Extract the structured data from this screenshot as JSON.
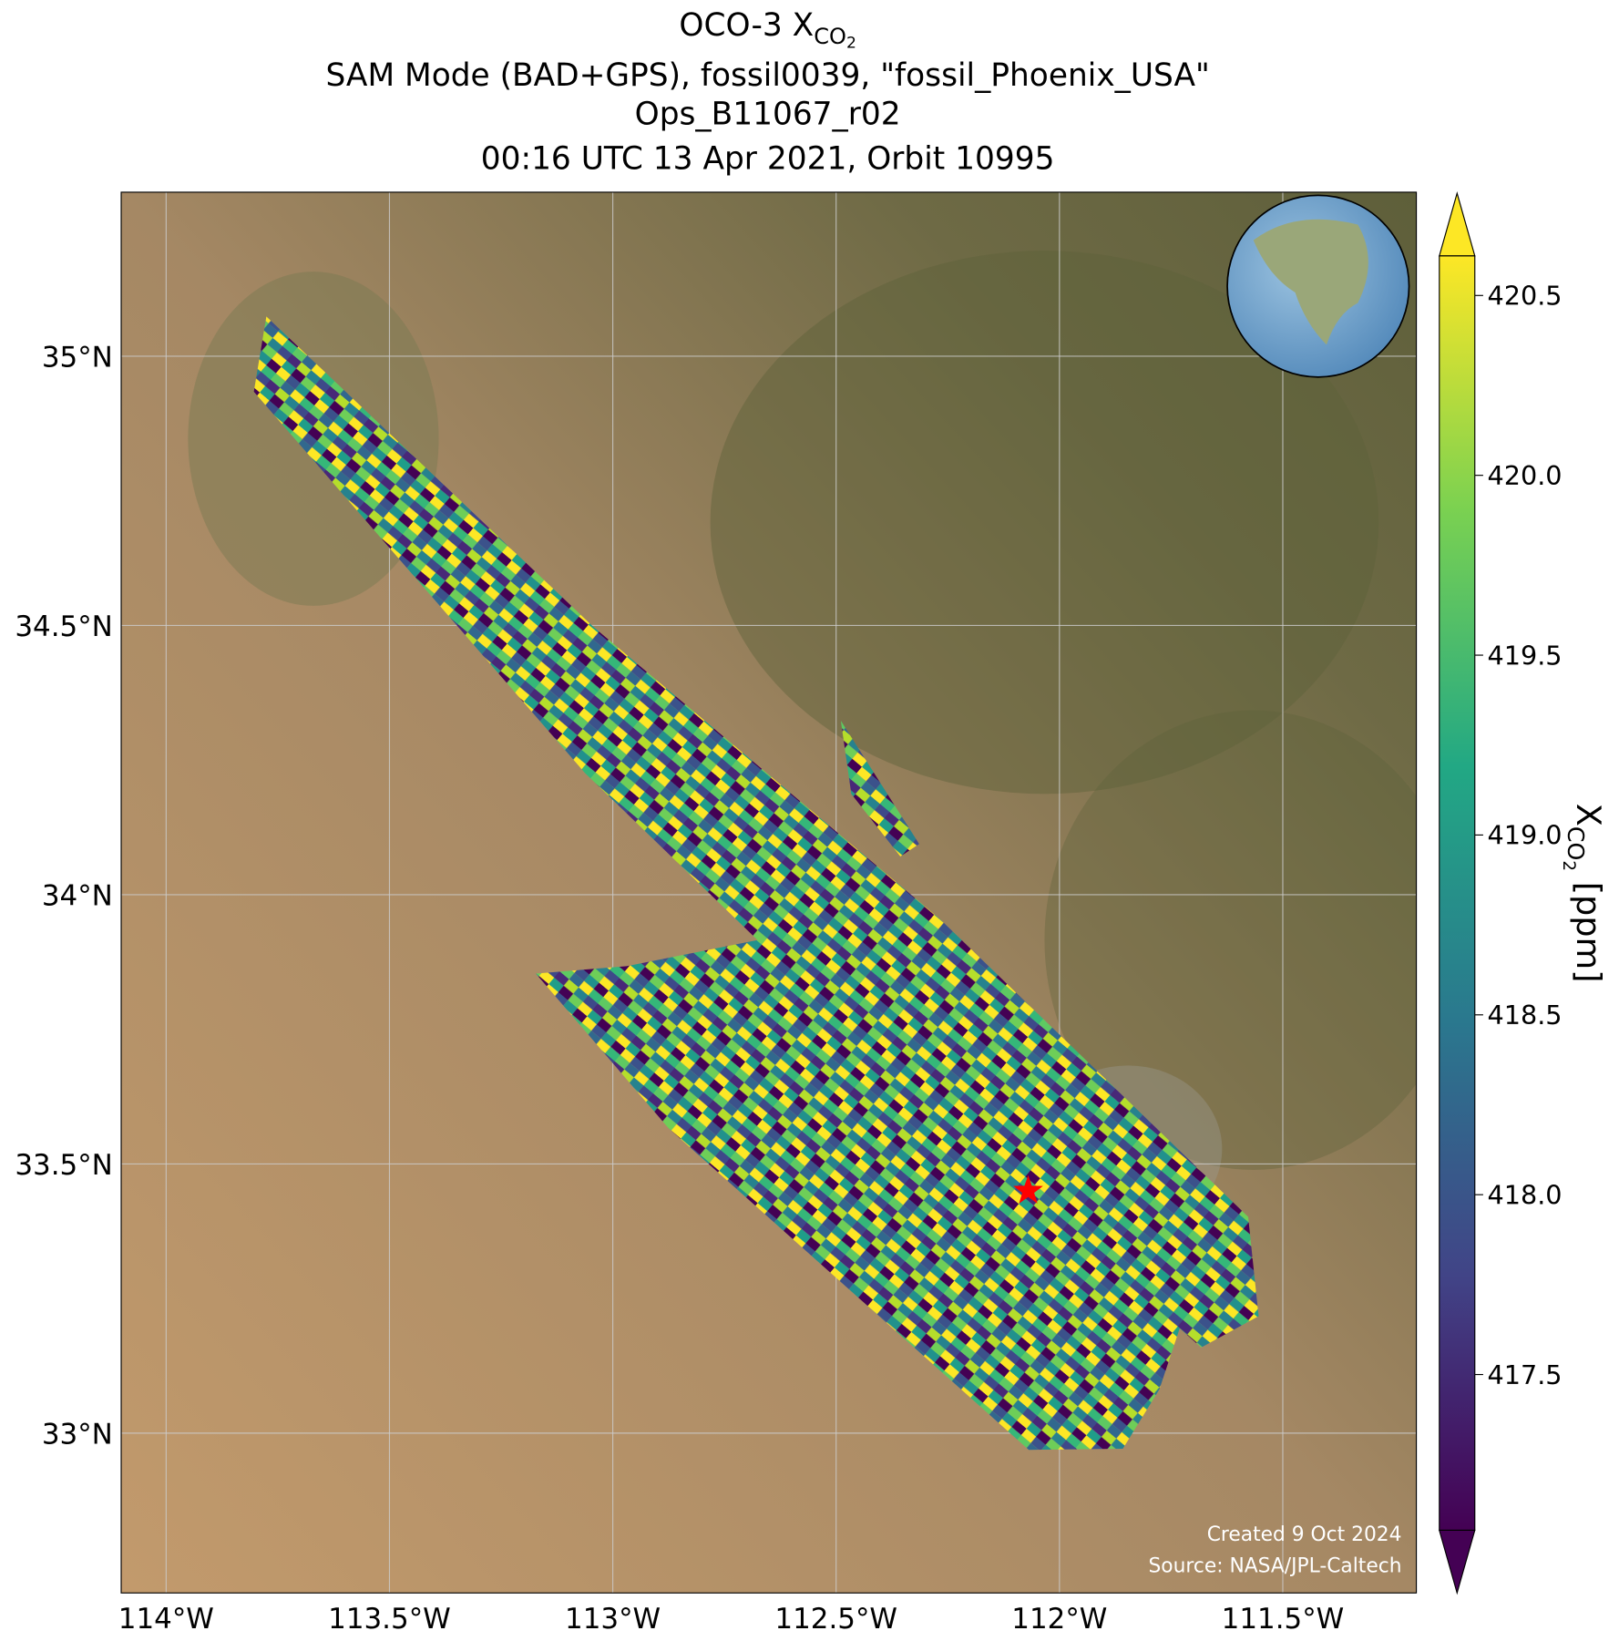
{
  "chart_data": {
    "type": "map",
    "title": {
      "line1": {
        "text": "OCO-3 X",
        "subscript": "CO",
        "subsubscript": "2"
      },
      "line2": "SAM Mode (BAD+GPS), fossil0039, \"fossil_Phoenix_USA\"",
      "line3": "Ops_B11067_r02",
      "line4": "00:16 UTC 13 Apr 2021, Orbit 10995"
    },
    "xlim": [
      -114.1006,
      -111.201
    ],
    "ylim": [
      32.7032,
      35.3046
    ],
    "xticks": [
      {
        "value": -114,
        "label": "114°W"
      },
      {
        "value": -113.5,
        "label": "113.5°W"
      },
      {
        "value": -113,
        "label": "113°W"
      },
      {
        "value": -112.5,
        "label": "112.5°W"
      },
      {
        "value": -112,
        "label": "112°W"
      },
      {
        "value": -111.5,
        "label": "111.5°W"
      }
    ],
    "yticks": [
      {
        "value": 33,
        "label": "33°N"
      },
      {
        "value": 33.5,
        "label": "33.5°N"
      },
      {
        "value": 34,
        "label": "34°N"
      },
      {
        "value": 34.5,
        "label": "34.5°N"
      },
      {
        "value": 35,
        "label": "35°N"
      }
    ],
    "grid": true,
    "target": {
      "lon": -112.07,
      "lat": 33.45,
      "color": "#ff0000"
    },
    "colorbar": {
      "label": {
        "text": "X",
        "subscript": "CO",
        "subsubscript": "2",
        "unit": " [ppm]"
      },
      "clim": [
        417.067,
        420.61
      ],
      "ticks": [
        {
          "value": 417.5,
          "label": "417.5"
        },
        {
          "value": 418,
          "label": "418.0"
        },
        {
          "value": 418.5,
          "label": "418.5"
        },
        {
          "value": 419,
          "label": "419.0"
        },
        {
          "value": 419.5,
          "label": "419.5"
        },
        {
          "value": 420,
          "label": "420.0"
        },
        {
          "value": 420.5,
          "label": "420.5"
        }
      ]
    },
    "annotations": [
      "Created 9 Oct 2024",
      "Source: NASA/JPL-Caltech"
    ]
  }
}
